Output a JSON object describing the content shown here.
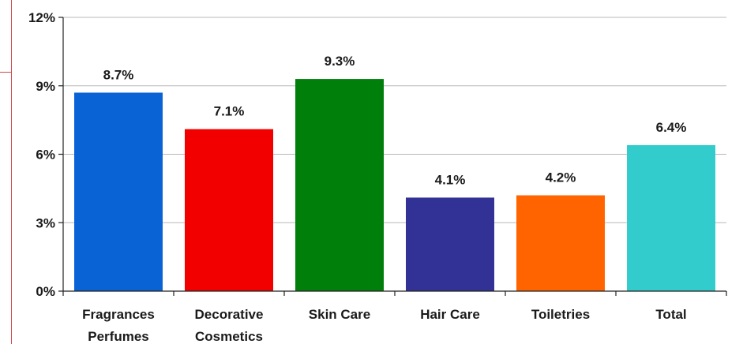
{
  "chart_data": {
    "type": "bar",
    "title": "",
    "xlabel": "",
    "ylabel": "",
    "categories": [
      [
        "Fragrances",
        "Perfumes"
      ],
      [
        "Decorative",
        "Cosmetics"
      ],
      [
        "Skin Care"
      ],
      [
        "Hair Care"
      ],
      [
        "Toiletries"
      ],
      [
        "Total"
      ]
    ],
    "values": [
      8.7,
      7.1,
      9.3,
      4.1,
      4.2,
      6.4
    ],
    "data_labels": [
      "8.7%",
      "7.1%",
      "9.3%",
      "4.1%",
      "4.2%",
      "6.4%"
    ],
    "bar_colors": [
      "#0a63d4",
      "#f20000",
      "#00800a",
      "#323296",
      "#ff6400",
      "#33cccc"
    ],
    "ylim": [
      0,
      12
    ],
    "yticks": [
      0,
      3,
      6,
      9,
      12
    ],
    "ytick_labels": [
      "0%",
      "3%",
      "6%",
      "9%",
      "12%"
    ],
    "grid": "horizontal",
    "legend": "none"
  },
  "colors": {
    "grid": "#b8b8b8",
    "axis": "#222222",
    "frame": "#d04848"
  }
}
